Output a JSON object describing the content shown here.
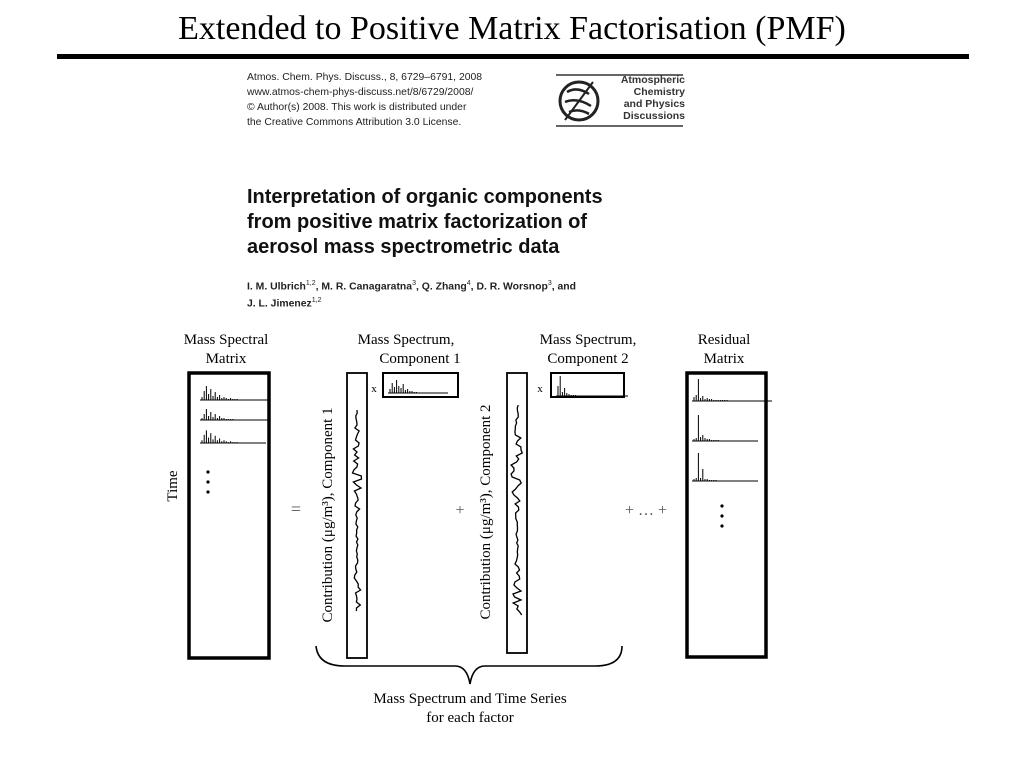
{
  "slide": {
    "title": "Extended to Positive Matrix Factorisation (PMF)"
  },
  "paper": {
    "citation_lines": [
      "Atmos. Chem. Phys. Discuss., 8, 6729–6791, 2008",
      "www.atmos-chem-phys-discuss.net/8/6729/2008/",
      "© Author(s) 2008. This work is distributed under",
      "the Creative Commons Attribution 3.0 License."
    ],
    "journal_logo_lines": [
      "Atmospheric",
      "Chemistry",
      "and Physics",
      "Discussions"
    ],
    "title_lines": [
      "Interpretation of organic components",
      "from positive matrix factorization of",
      "aerosol mass spectrometric data"
    ],
    "authors_line1": [
      {
        "name": "I. M. Ulbrich",
        "sup": "1,2"
      },
      {
        "name": ", M. R. Canagaratna",
        "sup": "3"
      },
      {
        "name": ", Q. Zhang",
        "sup": "4"
      },
      {
        "name": ", D. R. Worsnop",
        "sup": "3"
      },
      {
        "name": ", and",
        "sup": ""
      }
    ],
    "authors_line2": [
      {
        "name": "J. L. Jimenez",
        "sup": "1,2"
      }
    ]
  },
  "diagram": {
    "matrix_label": [
      "Mass Spectral",
      "Matrix"
    ],
    "time_label": "Time",
    "component1_label": [
      "Mass Spectrum,",
      "Component 1"
    ],
    "component2_label": [
      "Mass Spectrum,",
      "Component 2"
    ],
    "residual_label": [
      "Residual",
      "Matrix"
    ],
    "contribution1_label": "Contribution (μg/m³), Component 1",
    "contribution2_label": "Contribution (μg/m³), Component 2",
    "equals": "=",
    "plus1": "+",
    "plus2": "+ … +",
    "times1": "x",
    "times2": "x",
    "brace_caption": [
      "Mass Spectrum and Time Series",
      "for each factor"
    ]
  }
}
